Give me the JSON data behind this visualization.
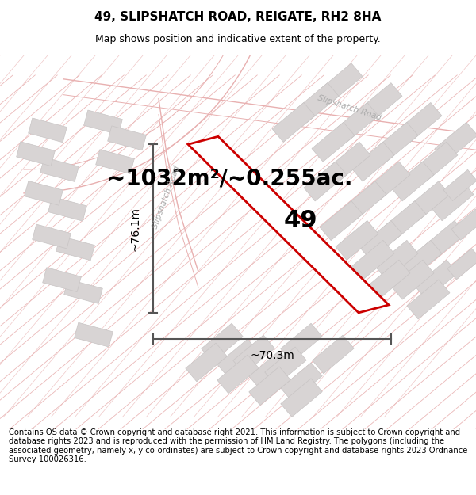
{
  "title_line1": "49, SLIPSHATCH ROAD, REIGATE, RH2 8HA",
  "title_line2": "Map shows position and indicative extent of the property.",
  "area_text": "~1032m²/~0.255ac.",
  "label_49": "49",
  "dim_vertical": "~76.1m",
  "dim_horizontal": "~70.3m",
  "road_label": "Slipshatch Road",
  "road_label2": "Slipshatch Road",
  "footer_text": "Contains OS data © Crown copyright and database right 2021. This information is subject to Crown copyright and database rights 2023 and is reproduced with the permission of HM Land Registry. The polygons (including the associated geometry, namely x, y co-ordinates) are subject to Crown copyright and database rights 2023 Ordnance Survey 100026316.",
  "bg_color": "#ffffff",
  "map_bg": "#ffffff",
  "road_line_color": "#e8b0b0",
  "building_color": "#d8d4d4",
  "building_edge": "#c8c4c4",
  "dim_color": "#555555",
  "plot_fill": "#ffffff",
  "plot_edge": "#cc0000",
  "title_fontsize": 11,
  "subtitle_fontsize": 9,
  "area_fontsize": 20,
  "label_fontsize": 22,
  "dim_fontsize": 10,
  "footer_fontsize": 7.2,
  "road_label_color": "#aaaaaa",
  "road_label_fontsize": 7.5
}
